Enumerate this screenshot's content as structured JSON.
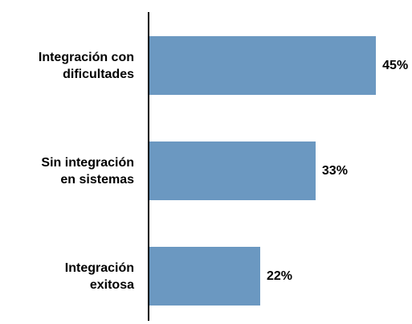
{
  "chart_data": {
    "type": "bar",
    "orientation": "horizontal",
    "categories": [
      "Integración con\ndificultades",
      "Sin integración\nen sistemas",
      "Integración\nexitosa"
    ],
    "values": [
      45,
      33,
      22
    ],
    "value_labels": [
      "45%",
      "33%",
      "22%"
    ],
    "color": "#6b98c1"
  }
}
